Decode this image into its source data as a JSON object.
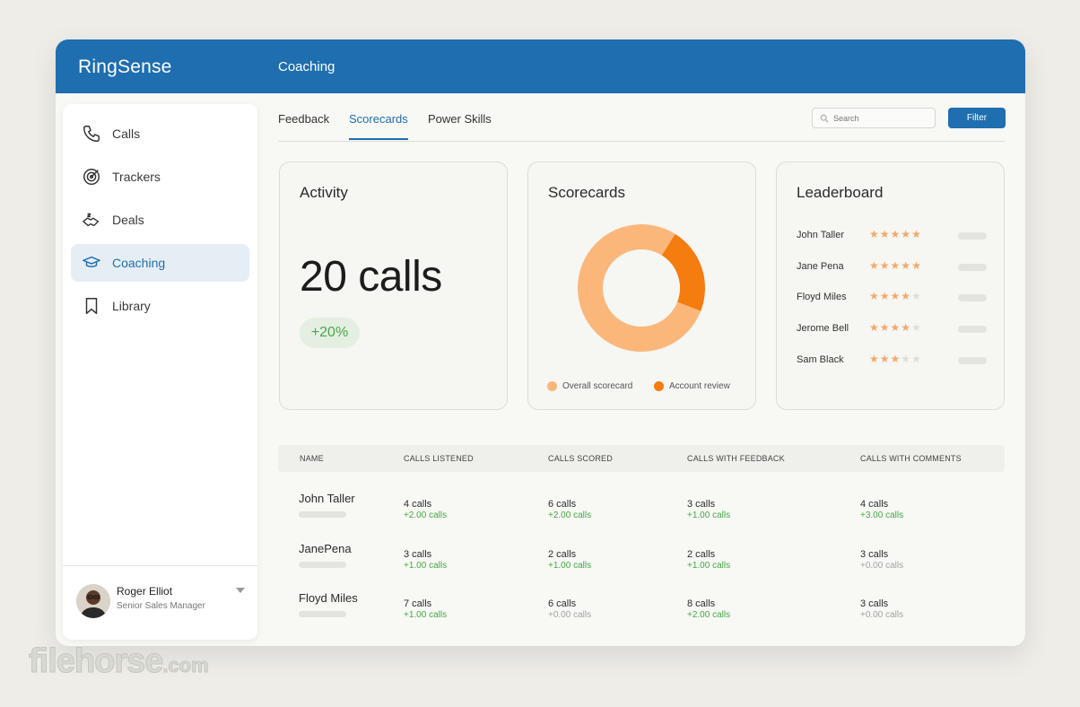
{
  "app": {
    "brand": "RingSense",
    "section": "Coaching"
  },
  "sidebar": {
    "items": [
      {
        "label": "Calls",
        "icon": "phone-icon",
        "active": false
      },
      {
        "label": "Trackers",
        "icon": "target-icon",
        "active": false
      },
      {
        "label": "Deals",
        "icon": "handshake-dollar-icon",
        "active": false
      },
      {
        "label": "Coaching",
        "icon": "graduation-cap-icon",
        "active": true
      },
      {
        "label": "Library",
        "icon": "bookmark-icon",
        "active": false
      }
    ],
    "profile": {
      "name": "Roger Elliot",
      "role": "Senior Sales Manager"
    }
  },
  "tabs": [
    {
      "label": "Feedback",
      "active": false
    },
    {
      "label": "Scorecards",
      "active": true
    },
    {
      "label": "Power Skills",
      "active": false
    }
  ],
  "search": {
    "placeholder": "Search"
  },
  "filter_label": "Filter",
  "activity": {
    "title": "Activity",
    "value": "20 calls",
    "change": "+20%"
  },
  "scorecards": {
    "title": "Scorecards",
    "legend": [
      {
        "label": "Overall scorecard",
        "color": "#fbb77a",
        "share": 0.78
      },
      {
        "label": "Account review",
        "color": "#f57c0f",
        "share": 0.22
      }
    ]
  },
  "leaderboard": {
    "title": "Leaderboard",
    "rows": [
      {
        "name": "John Taller",
        "stars": 5
      },
      {
        "name": "Jane Pena",
        "stars": 5
      },
      {
        "name": "Floyd Miles",
        "stars": 4
      },
      {
        "name": "Jerome Bell",
        "stars": 4
      },
      {
        "name": "Sam Black",
        "stars": 3
      }
    ]
  },
  "table": {
    "headers": [
      "NAME",
      "CALLS LISTENED",
      "CALLS SCORED",
      "CALLS WITH FEEDBACK",
      "CALLS WITH COMMENTS"
    ],
    "rows": [
      {
        "name": "John Taller",
        "cells": [
          {
            "value": "4 calls",
            "delta": "+2.00 calls",
            "positive": true
          },
          {
            "value": "6 calls",
            "delta": "+2.00 calls",
            "positive": true
          },
          {
            "value": "3 calls",
            "delta": "+1.00 calls",
            "positive": true
          },
          {
            "value": "4 calls",
            "delta": "+3.00 calls",
            "positive": true
          }
        ]
      },
      {
        "name": "JanePena",
        "cells": [
          {
            "value": "3 calls",
            "delta": "+1.00 calls",
            "positive": true
          },
          {
            "value": "2 calls",
            "delta": "+1.00 calls",
            "positive": true
          },
          {
            "value": "2 calls",
            "delta": "+1.00 calls",
            "positive": true
          },
          {
            "value": "3 calls",
            "delta": "+0.00 calls",
            "positive": false
          }
        ]
      },
      {
        "name": "Floyd Miles",
        "cells": [
          {
            "value": "7 calls",
            "delta": "+1.00 calls",
            "positive": true
          },
          {
            "value": "6 calls",
            "delta": "+0.00 calls",
            "positive": false
          },
          {
            "value": "8 calls",
            "delta": "+2.00 calls",
            "positive": true
          },
          {
            "value": "3 calls",
            "delta": "+0.00 calls",
            "positive": false
          }
        ]
      }
    ]
  },
  "watermark": {
    "main": "filehorse",
    "suffix": ".com"
  },
  "colors": {
    "primary": "#1f6eb0",
    "positive": "#45a845",
    "star": "#f5a866"
  }
}
